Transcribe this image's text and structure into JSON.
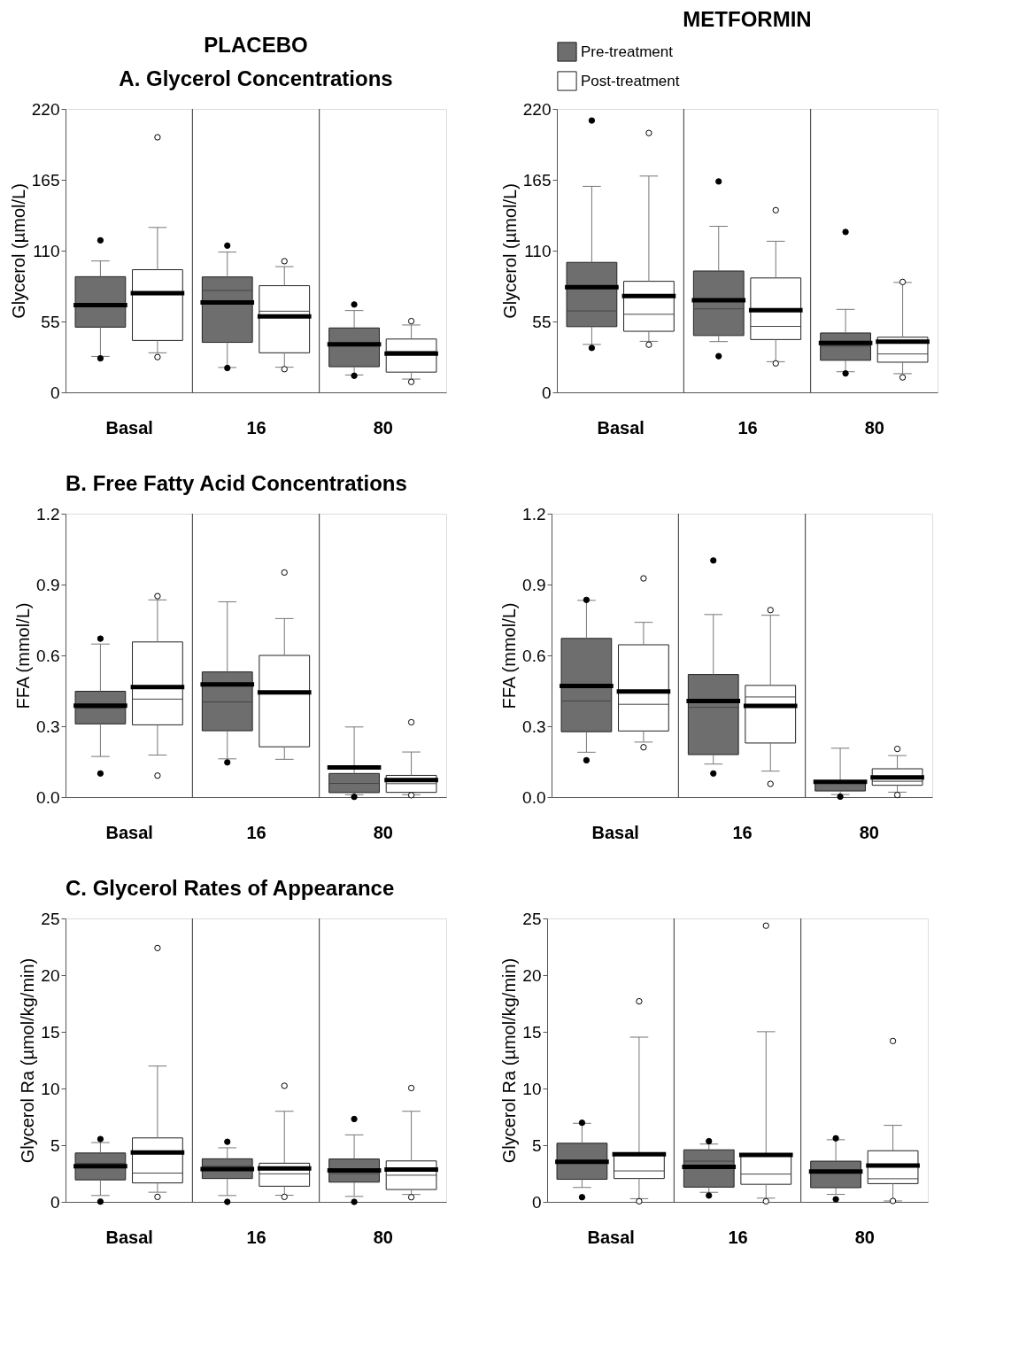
{
  "chart_data": [
    {
      "type": "box",
      "title": "PLACEBO",
      "subtitle": "A. Glycerol Concentrations",
      "ylabel": "Glycerol (µmol/L)",
      "categories": [
        "Basal",
        "16",
        "80"
      ],
      "ylim": [
        0,
        220
      ],
      "yticks": [
        0,
        55,
        110,
        165,
        220
      ],
      "grid": "x",
      "legend": false,
      "series": [
        {
          "color": "#6e6e6e",
          "boxes": [
            {
              "low": 27.9,
              "q1": 50.6,
              "median": 67,
              "q3": 89.8,
              "high": 102,
              "mean": 67.8,
              "outliers": [
                118,
                26.4
              ]
            },
            {
              "low": 19.3,
              "q1": 38.8,
              "median": 79.1,
              "q3": 89.6,
              "high": 108.9,
              "mean": 69.7,
              "outliers": [
                113.9,
                18.9
              ]
            },
            {
              "low": 13.5,
              "q1": 19.9,
              "median": 37,
              "q3": 50,
              "high": 63.5,
              "mean": 37.3,
              "outliers": [
                68.2,
                12.9
              ]
            }
          ]
        },
        {
          "color": "#ffffff",
          "boxes": [
            {
              "low": 30.7,
              "q1": 40.3,
              "median": 75.9,
              "q3": 95.2,
              "high": 128,
              "mean": 77,
              "outliers": [
                198,
                27.4
              ]
            },
            {
              "low": 19.5,
              "q1": 30.7,
              "median": 63,
              "q3": 82.8,
              "high": 97.6,
              "mean": 59,
              "outliers": [
                101.8,
                18
              ]
            },
            {
              "low": 10.3,
              "q1": 15.7,
              "median": 31.7,
              "q3": 41.4,
              "high": 52.3,
              "mean": 30,
              "outliers": [
                55.3,
                8.1
              ]
            }
          ]
        }
      ]
    },
    {
      "type": "box",
      "title": "METFORMIN",
      "ylabel": "Glycerol (µmol/L)",
      "categories": [
        "Basal",
        "16",
        "80"
      ],
      "ylim": [
        0,
        220
      ],
      "yticks": [
        0,
        55,
        110,
        165,
        220
      ],
      "grid": "x",
      "legend": "top",
      "series": [
        {
          "name": "Pre-treatment",
          "color": "#6e6e6e",
          "boxes": [
            {
              "low": 37.2,
              "q1": 51,
              "median": 63.2,
              "q3": 100.9,
              "high": 159.9,
              "mean": 81.7,
              "outliers": [
                211,
                34.5
              ]
            },
            {
              "low": 39.4,
              "q1": 44.1,
              "median": 64.8,
              "q3": 94.2,
              "high": 128.9,
              "mean": 71.5,
              "outliers": [
                163.7,
                28.1
              ]
            },
            {
              "low": 16,
              "q1": 24.9,
              "median": 35.9,
              "q3": 46.1,
              "high": 64.4,
              "mean": 38.3,
              "outliers": [
                124.5,
                14.7
              ]
            }
          ]
        },
        {
          "name": "Post-treatment",
          "color": "#ffffff",
          "boxes": [
            {
              "low": 39.6,
              "q1": 47.4,
              "median": 60.6,
              "q3": 86.2,
              "high": 167.9,
              "mean": 74.8,
              "outliers": [
                201.3,
                37
              ]
            },
            {
              "low": 23.8,
              "q1": 41,
              "median": 51.2,
              "q3": 88.8,
              "high": 117.3,
              "mean": 63.7,
              "outliers": [
                141.4,
                22.5
              ]
            },
            {
              "low": 14.5,
              "q1": 23.4,
              "median": 29.8,
              "q3": 42.8,
              "high": 85.3,
              "mean": 39.4,
              "outliers": [
                85.7,
                11.6
              ]
            }
          ]
        }
      ]
    },
    {
      "type": "box",
      "title": "B. Free Fatty Acid Concentrations",
      "ylabel": "FFA (mmol/L)",
      "categories": [
        "Basal",
        "16",
        "80"
      ],
      "ylim": [
        0,
        1.2
      ],
      "yticks": [
        {
          "value": 0,
          "label": "0.0"
        },
        0.3,
        0.6,
        0.9,
        1.2
      ],
      "grid": "x",
      "legend": false,
      "series": [
        {
          "color": "#6e6e6e",
          "boxes": [
            {
              "low": 0.172,
              "q1": 0.31,
              "median": 0.377,
              "q3": 0.448,
              "high": 0.648,
              "mean": 0.387,
              "outliers": [
                0.671,
                0.1
              ]
            },
            {
              "low": 0.162,
              "q1": 0.281,
              "median": 0.403,
              "q3": 0.53,
              "high": 0.827,
              "mean": 0.477,
              "outliers": [
                0.147
              ]
            },
            {
              "low": 0.01,
              "q1": 0.019,
              "median": 0.058,
              "q3": 0.1,
              "high": 0.297,
              "mean": 0.126,
              "outliers": [
                0.001
              ]
            }
          ]
        },
        {
          "color": "#ffffff",
          "boxes": [
            {
              "low": 0.178,
              "q1": 0.306,
              "median": 0.415,
              "q3": 0.657,
              "high": 0.835,
              "mean": 0.466,
              "outliers": [
                0.851,
                0.091
              ]
            },
            {
              "low": 0.16,
              "q1": 0.213,
              "median": 0.44,
              "q3": 0.6,
              "high": 0.756,
              "mean": 0.443,
              "outliers": [
                0.951
              ]
            },
            {
              "low": 0.01,
              "q1": 0.02,
              "median": 0.057,
              "q3": 0.092,
              "high": 0.191,
              "mean": 0.072,
              "outliers": [
                0.317,
                0.008
              ]
            }
          ]
        }
      ]
    },
    {
      "type": "box",
      "ylabel": "FFA (mmol/L)",
      "categories": [
        "Basal",
        "16",
        "80"
      ],
      "ylim": [
        0,
        1.2
      ],
      "yticks": [
        {
          "value": 0,
          "label": "0.0"
        },
        0.3,
        0.6,
        0.9,
        1.2
      ],
      "grid": "x",
      "legend": false,
      "series": [
        {
          "color": "#6e6e6e",
          "boxes": [
            {
              "low": 0.19,
              "q1": 0.277,
              "median": 0.407,
              "q3": 0.672,
              "high": 0.833,
              "mean": 0.471,
              "outliers": [
                0.835,
                0.156
              ]
            },
            {
              "low": 0.14,
              "q1": 0.18,
              "median": 0.38,
              "q3": 0.519,
              "high": 0.773,
              "mean": 0.407,
              "outliers": [
                1.002,
                0.1
              ]
            },
            {
              "low": 0.011,
              "q1": 0.026,
              "median": 0.06,
              "q3": 0.068,
              "high": 0.207,
              "mean": 0.065,
              "outliers": [
                0.002
              ]
            }
          ]
        },
        {
          "color": "#ffffff",
          "boxes": [
            {
              "low": 0.233,
              "q1": 0.28,
              "median": 0.393,
              "q3": 0.645,
              "high": 0.74,
              "mean": 0.447,
              "outliers": [
                0.926,
                0.211
              ]
            },
            {
              "low": 0.11,
              "q1": 0.229,
              "median": 0.424,
              "q3": 0.473,
              "high": 0.77,
              "mean": 0.386,
              "outliers": [
                0.792,
                0.056
              ]
            },
            {
              "low": 0.021,
              "q1": 0.05,
              "median": 0.067,
              "q3": 0.12,
              "high": 0.176,
              "mean": 0.083,
              "outliers": [
                0.204,
                0.009
              ]
            }
          ]
        }
      ]
    },
    {
      "type": "box",
      "title": "C. Glycerol Rates of Appearance",
      "ylabel": "Glycerol Ra (µmol/kg/min)",
      "categories": [
        "Basal",
        "16",
        "80"
      ],
      "ylim": [
        0,
        25
      ],
      "yticks": [
        0,
        5,
        10,
        15,
        20,
        25
      ],
      "grid": "x",
      "legend": false,
      "series": [
        {
          "color": "#6e6e6e",
          "boxes": [
            {
              "low": 0.56,
              "q1": 1.94,
              "median": 3.4,
              "q3": 4.31,
              "high": 5.23,
              "mean": 3.15,
              "outliers": [
                5.54,
                0.02
              ]
            },
            {
              "low": 0.56,
              "q1": 2.06,
              "median": 3.15,
              "q3": 3.8,
              "high": 4.77,
              "mean": 2.9,
              "outliers": [
                5.3,
                0
              ]
            },
            {
              "low": 0.48,
              "q1": 1.74,
              "median": 2.49,
              "q3": 3.78,
              "high": 5.91,
              "mean": 2.78,
              "outliers": [
                7.31,
                0
              ]
            }
          ]
        },
        {
          "color": "#ffffff",
          "boxes": [
            {
              "low": 0.85,
              "q1": 1.67,
              "median": 2.54,
              "q3": 5.64,
              "high": 11.98,
              "mean": 4.36,
              "outliers": [
                22.39,
                0.44
              ]
            },
            {
              "low": 0.58,
              "q1": 1.38,
              "median": 2.47,
              "q3": 3.41,
              "high": 7.99,
              "mean": 2.95,
              "outliers": [
                10.24,
                0.44
              ]
            },
            {
              "low": 0.65,
              "q1": 1.09,
              "median": 2.35,
              "q3": 3.61,
              "high": 7.99,
              "mean": 2.86,
              "outliers": [
                10.04,
                0.41
              ]
            }
          ]
        }
      ]
    },
    {
      "type": "box",
      "ylabel": "Glycerol Ra (µmol/kg/min)",
      "categories": [
        "Basal",
        "16",
        "80"
      ],
      "ylim": [
        0,
        25
      ],
      "yticks": [
        0,
        5,
        10,
        15,
        20,
        25
      ],
      "grid": "x",
      "legend": false,
      "series": [
        {
          "color": "#6e6e6e",
          "boxes": [
            {
              "low": 1.27,
              "q1": 1.99,
              "median": 3.5,
              "q3": 5.17,
              "high": 6.93,
              "mean": 3.54,
              "outliers": [
                6.98,
                0.41
              ]
            },
            {
              "low": 0.84,
              "q1": 1.3,
              "median": 3.59,
              "q3": 4.59,
              "high": 5.1,
              "mean": 3.08,
              "outliers": [
                5.35,
                0.56
              ]
            },
            {
              "low": 0.66,
              "q1": 1.25,
              "median": 2.57,
              "q3": 3.59,
              "high": 5.48,
              "mean": 2.68,
              "outliers": [
                5.61,
                0.23
              ]
            }
          ]
        },
        {
          "color": "#ffffff",
          "boxes": [
            {
              "low": 0.28,
              "q1": 2.06,
              "median": 2.73,
              "q3": 4.25,
              "high": 14.53,
              "mean": 4.2,
              "outliers": [
                17.69,
                0.05
              ]
            },
            {
              "low": 0.33,
              "q1": 1.55,
              "median": 2.45,
              "q3": 4.15,
              "high": 15.01,
              "mean": 4.15,
              "outliers": [
                24.36,
                0.05
              ]
            },
            {
              "low": 0.08,
              "q1": 1.61,
              "median": 2.04,
              "q3": 4.51,
              "high": 6.75,
              "mean": 3.21,
              "outliers": [
                14.19,
                0.08
              ]
            }
          ]
        }
      ]
    }
  ]
}
